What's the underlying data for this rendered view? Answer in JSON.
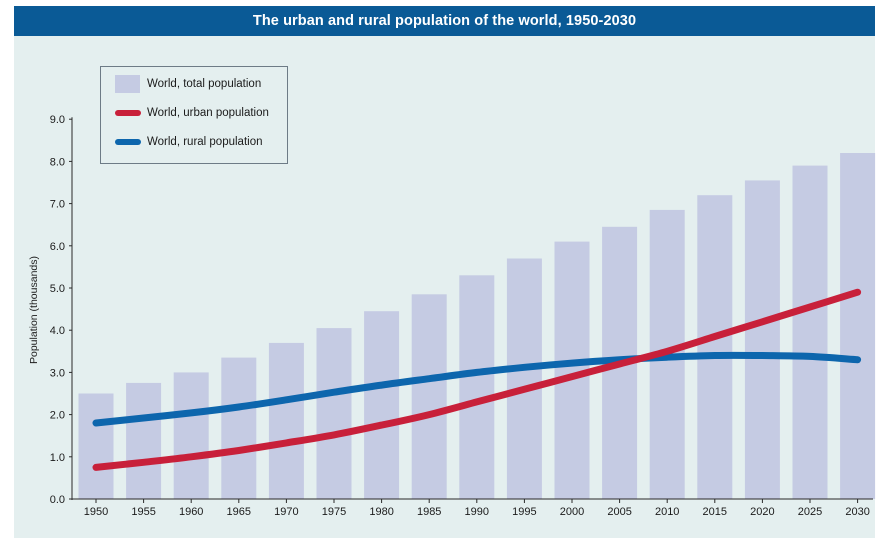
{
  "chart_data": {
    "type": "bar",
    "title": "The urban and rural population of the world, 1950-2030",
    "xlabel": "",
    "ylabel": "Population (thousands)",
    "ylim": [
      0,
      9
    ],
    "yticks": [
      "0.0",
      "1.0",
      "2.0",
      "3.0",
      "4.0",
      "5.0",
      "6.0",
      "7.0",
      "8.0",
      "9.0"
    ],
    "categories": [
      "1950",
      "1955",
      "1960",
      "1965",
      "1970",
      "1975",
      "1980",
      "1985",
      "1990",
      "1995",
      "2000",
      "2005",
      "2010",
      "2015",
      "2020",
      "2025",
      "2030"
    ],
    "legend_position": "top-left",
    "grid": false,
    "series": [
      {
        "name": "World, total population",
        "type": "bar",
        "color": "#c5cbe3",
        "values": [
          2.5,
          2.75,
          3.0,
          3.35,
          3.7,
          4.05,
          4.45,
          4.85,
          5.3,
          5.7,
          6.1,
          6.45,
          6.85,
          7.2,
          7.55,
          7.9,
          8.2
        ]
      },
      {
        "name": "World, urban population",
        "type": "line",
        "color": "#c8203a",
        "values": [
          0.75,
          0.87,
          1.0,
          1.15,
          1.33,
          1.52,
          1.75,
          2.0,
          2.3,
          2.6,
          2.9,
          3.2,
          3.5,
          3.85,
          4.2,
          4.55,
          4.9
        ]
      },
      {
        "name": "World, rural population",
        "type": "line",
        "color": "#0d66ad",
        "values": [
          1.8,
          1.92,
          2.04,
          2.18,
          2.35,
          2.53,
          2.7,
          2.85,
          3.0,
          3.12,
          3.22,
          3.3,
          3.36,
          3.4,
          3.4,
          3.38,
          3.3
        ]
      }
    ]
  },
  "legend": {
    "total_label": "World, total population",
    "urban_label": "World, urban population",
    "rural_label": "World, rural population"
  },
  "colors": {
    "background": "#e4efef",
    "title_bar": "#0a5a96",
    "bar": "#c5cbe3",
    "urban": "#c8203a",
    "rural": "#0d66ad"
  }
}
